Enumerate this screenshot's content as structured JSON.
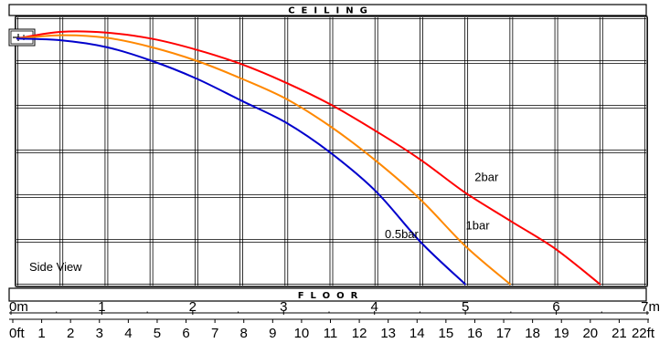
{
  "chart_data": {
    "type": "line",
    "ceiling_label": "CEILING",
    "floor_label": "FLOOR",
    "annotation": "Side View",
    "x_meters": {
      "ticks": [
        "0m",
        "1",
        "2",
        "3",
        "4",
        "5",
        "6",
        "7m"
      ],
      "range": [
        0,
        7
      ]
    },
    "x_feet": {
      "ticks": [
        "0ft",
        "1",
        "2",
        "3",
        "4",
        "5",
        "6",
        "7",
        "8",
        "9",
        "10",
        "11",
        "12",
        "13",
        "14",
        "15",
        "16",
        "17",
        "18",
        "19",
        "20",
        "21",
        "22ft"
      ],
      "range": [
        0,
        22
      ]
    },
    "grid": true,
    "series": [
      {
        "name": "2bar",
        "color": "#ff0000",
        "points": [
          [
            0,
            2.9
          ],
          [
            0.5,
            2.98
          ],
          [
            1.0,
            2.97
          ],
          [
            1.5,
            2.9
          ],
          [
            2.0,
            2.77
          ],
          [
            2.5,
            2.6
          ],
          [
            3.0,
            2.38
          ],
          [
            3.5,
            2.12
          ],
          [
            4.0,
            1.81
          ],
          [
            4.5,
            1.47
          ],
          [
            5.0,
            1.08
          ],
          [
            5.5,
            0.75
          ],
          [
            6.0,
            0.42
          ],
          [
            6.5,
            0.0
          ]
        ]
      },
      {
        "name": "1bar",
        "color": "#ff8800",
        "points": [
          [
            0,
            2.9
          ],
          [
            0.5,
            2.94
          ],
          [
            1.0,
            2.91
          ],
          [
            1.5,
            2.8
          ],
          [
            2.0,
            2.64
          ],
          [
            2.5,
            2.43
          ],
          [
            3.0,
            2.19
          ],
          [
            3.5,
            1.86
          ],
          [
            4.0,
            1.46
          ],
          [
            4.5,
            1.0
          ],
          [
            5.0,
            0.45
          ],
          [
            5.5,
            0.0
          ]
        ]
      },
      {
        "name": "0.5bar",
        "color": "#0000cc",
        "points": [
          [
            0,
            2.9
          ],
          [
            0.5,
            2.88
          ],
          [
            1.0,
            2.8
          ],
          [
            1.5,
            2.64
          ],
          [
            2.0,
            2.43
          ],
          [
            2.5,
            2.17
          ],
          [
            3.0,
            1.91
          ],
          [
            3.5,
            1.55
          ],
          [
            4.0,
            1.1
          ],
          [
            4.5,
            0.5
          ],
          [
            5.0,
            0.0
          ]
        ]
      }
    ],
    "label_anchors": {
      "2bar": [
        5.1,
        1.22
      ],
      "1bar": [
        5.0,
        0.65
      ],
      "0.5bar": [
        4.1,
        0.55
      ]
    }
  }
}
